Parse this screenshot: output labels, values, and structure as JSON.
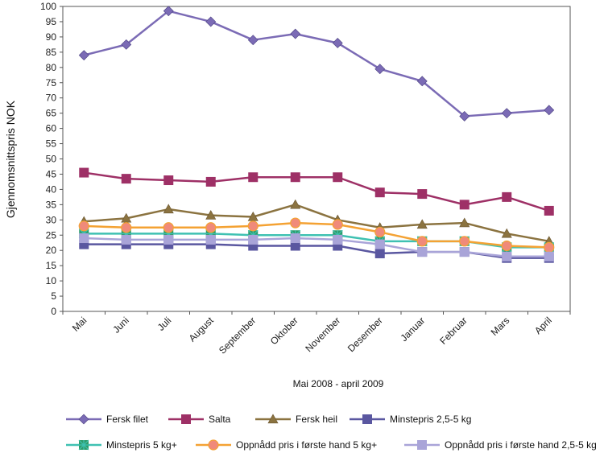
{
  "chart_data": {
    "type": "line",
    "title": "",
    "xlabel": "Mai 2008 - april 2009",
    "ylabel": "Gjennomsnittspris NOK",
    "ylim": [
      0,
      100
    ],
    "ytick_step": 5,
    "grid": false,
    "legend_position": "bottom",
    "categories": [
      "Mai",
      "Juni",
      "Juli",
      "August",
      "September",
      "Oktober",
      "November",
      "Desember",
      "Januar",
      "Februar",
      "Mars",
      "April"
    ],
    "series": [
      {
        "name": "Fersk filet",
        "color": "#7b6bb5",
        "marker": "diamond",
        "values": [
          84,
          87.5,
          98.5,
          95,
          89,
          91,
          88,
          79.5,
          75.5,
          64,
          65,
          66
        ]
      },
      {
        "name": "Salta",
        "color": "#9e3066",
        "marker": "square",
        "values": [
          45.5,
          43.5,
          43,
          42.5,
          44,
          44,
          44,
          39,
          38.5,
          35,
          37.5,
          33
        ]
      },
      {
        "name": "Fersk heil",
        "color": "#8b7340",
        "marker": "triangle",
        "values": [
          29.5,
          30.5,
          33.5,
          31.5,
          31,
          35,
          30,
          27.5,
          28.5,
          29,
          25.5,
          23
        ]
      },
      {
        "name": "Minstepris 2,5-5 kg",
        "color": "#5a57a0",
        "marker": "square",
        "values": [
          22,
          22,
          22,
          22,
          21.5,
          21.5,
          21.5,
          19,
          19.5,
          19.5,
          17.5,
          17.5
        ]
      },
      {
        "name": "Minstepris 5 kg+",
        "color": "#3fc1b2",
        "marker": "star-square",
        "values": [
          25.5,
          25.5,
          25.5,
          25.5,
          25,
          25,
          25,
          23,
          23,
          23,
          21,
          21
        ]
      },
      {
        "name": "Oppnådd pris i første hand 5 kg+",
        "color": "#f4a233",
        "marker": "circle",
        "values": [
          28,
          27.5,
          27.5,
          27.5,
          28,
          29,
          28.5,
          26,
          23,
          23,
          21.5,
          21
        ]
      },
      {
        "name": "Oppnådd pris i første hand 2,5-5 kg",
        "color": "#a9a4d8",
        "marker": "square",
        "values": [
          24,
          23.5,
          23.5,
          23.5,
          23.5,
          24,
          23.5,
          22,
          19.5,
          19.5,
          18,
          18
        ]
      }
    ]
  }
}
